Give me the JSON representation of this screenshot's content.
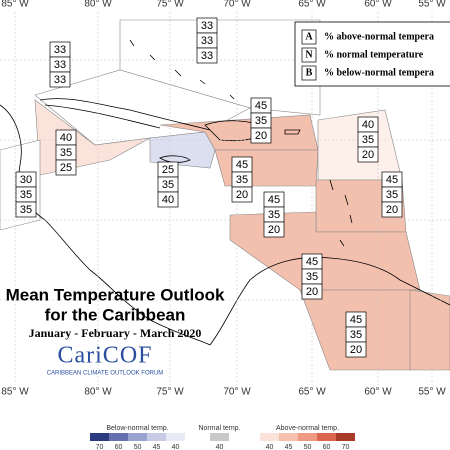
{
  "longitudes": [
    "85° W",
    "80° W",
    "75° W",
    "70° W",
    "65° W",
    "60° W",
    "55° W"
  ],
  "key": [
    {
      "letter": "A",
      "text": "% above-normal tempera"
    },
    {
      "letter": "N",
      "text": "% normal temperature"
    },
    {
      "letter": "B",
      "text": "% below-normal tempera"
    }
  ],
  "regions": [
    {
      "values": [
        33,
        33,
        33
      ],
      "color": "#ffffff"
    },
    {
      "values": [
        33,
        33,
        33
      ],
      "color": "#ffffff"
    },
    {
      "values": [
        40,
        35,
        25
      ],
      "color": "#fbe3dc"
    },
    {
      "values": [
        30,
        35,
        35
      ],
      "color": "#ffffff"
    },
    {
      "values": [
        25,
        35,
        40
      ],
      "color": "#dcdff0"
    },
    {
      "values": [
        45,
        35,
        20
      ],
      "color": "#f3c0ae"
    },
    {
      "values": [
        45,
        35,
        20
      ],
      "color": "#f3c0ae"
    },
    {
      "values": [
        40,
        35,
        20
      ],
      "color": "#fdf0ea"
    },
    {
      "values": [
        45,
        35,
        20
      ],
      "color": "#f3c0ae"
    },
    {
      "values": [
        45,
        35,
        20
      ],
      "color": "#f3c0ae"
    },
    {
      "values": [
        45,
        35,
        20
      ],
      "color": "#f3c0ae"
    },
    {
      "values": [
        45,
        35,
        20
      ],
      "color": "#f3c0ae"
    }
  ],
  "title": "Mean Temperature Outlook",
  "subtitle": "for the Caribbean",
  "period": "January - February - March 2020",
  "logo": "CariCOF",
  "logo_caption": "CARIBBEAN CLIMATE OUTLOOK FORUM",
  "legend": {
    "below": {
      "title": "Below-normal temp.",
      "ticks": [
        70,
        60,
        50,
        45,
        40
      ],
      "colors": [
        "#2c3b80",
        "#6670b0",
        "#9aa2cf",
        "#c7cbe6",
        "#e8eaf5"
      ]
    },
    "normal": {
      "title": "Normal temp.",
      "ticks": [
        40
      ],
      "colors": [
        "#c8c8c8"
      ]
    },
    "above": {
      "title": "Above-normal temp.",
      "ticks": [
        40,
        45,
        50,
        60,
        70
      ],
      "colors": [
        "#fbe3dc",
        "#f6c0b0",
        "#ee9a82",
        "#d9664d",
        "#a83a2a"
      ]
    }
  }
}
